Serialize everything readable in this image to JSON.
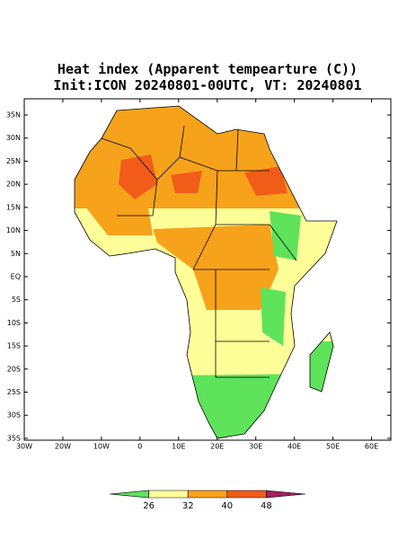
{
  "title": "Heat index (Apparent tempearture (C))",
  "subtitle": "Init:ICON 20240801-00UTC, VT: 20240801",
  "map": {
    "latlim": [
      -35.4,
      38.5
    ],
    "lonlim": [
      -30,
      65
    ],
    "lat_ticks": [
      {
        "value": 35,
        "label": "35N"
      },
      {
        "value": 30,
        "label": "30N"
      },
      {
        "value": 25,
        "label": "25N"
      },
      {
        "value": 20,
        "label": "20N"
      },
      {
        "value": 15,
        "label": "15N"
      },
      {
        "value": 10,
        "label": "10N"
      },
      {
        "value": 5,
        "label": "5N"
      },
      {
        "value": 0,
        "label": "EQ"
      },
      {
        "value": -5,
        "label": "5S"
      },
      {
        "value": -10,
        "label": "10S"
      },
      {
        "value": -15,
        "label": "15S"
      },
      {
        "value": -20,
        "label": "20S"
      },
      {
        "value": -25,
        "label": "25S"
      },
      {
        "value": -30,
        "label": "30S"
      },
      {
        "value": -35,
        "label": "35S"
      }
    ],
    "lon_ticks": [
      {
        "value": -30,
        "label": "30W"
      },
      {
        "value": -20,
        "label": "20W"
      },
      {
        "value": -10,
        "label": "10W"
      },
      0,
      {
        "value": 10,
        "label": "10E"
      },
      {
        "value": 20,
        "label": "20E"
      },
      {
        "value": 30,
        "label": "30E"
      },
      {
        "value": 40,
        "label": "40E"
      },
      {
        "value": 50,
        "label": "50E"
      },
      {
        "value": 60,
        "label": "60E"
      }
    ]
  },
  "colorbar": {
    "colors": [
      "#5ee35a",
      "#ffff99",
      "#f7a21b",
      "#f25c19",
      "#a31f5e"
    ],
    "ticks": [
      26,
      32,
      40,
      48
    ]
  }
}
